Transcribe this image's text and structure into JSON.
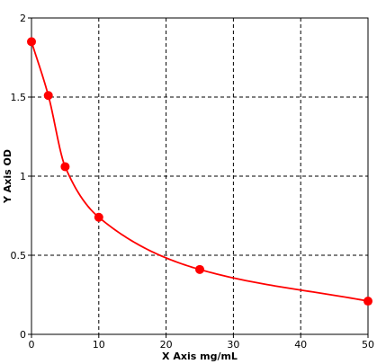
{
  "chart_data": {
    "type": "scatter",
    "xlabel": "X Axis mg/mL",
    "ylabel": "Y Axis OD",
    "xlim": [
      0,
      50
    ],
    "ylim": [
      0,
      2
    ],
    "x_ticks": [
      "0",
      "10",
      "20",
      "30",
      "40",
      "50"
    ],
    "y_ticks": [
      "0",
      "0.5",
      "1",
      "1.5",
      "2"
    ],
    "grid": true,
    "series": [
      {
        "x": [
          0,
          2.5,
          5,
          10,
          25,
          50
        ],
        "y": [
          1.85,
          1.51,
          1.06,
          0.74,
          0.41,
          0.21
        ],
        "fit_curve": true
      }
    ],
    "colors": {
      "series": "#ff0000",
      "grid": "#000000",
      "axis": "#000000"
    }
  }
}
